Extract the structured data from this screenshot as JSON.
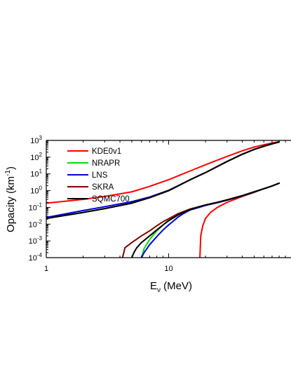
{
  "chart_data": {
    "type": "line",
    "xlabel": "E",
    "xlabel_sub": "ν",
    "xlabel_unit": " (MeV)",
    "ylabel": "Opacity (km",
    "ylabel_sup": "-1",
    "ylabel_close": ")",
    "x_scale": "log",
    "y_scale": "log",
    "xlim": [
      1,
      100
    ],
    "ylim": [
      0.0001,
      1000
    ],
    "grid": false,
    "legend_position": "top-left",
    "x_ticks": [
      {
        "value": 1,
        "label": "1"
      },
      {
        "value": 10,
        "label": "10"
      }
    ],
    "y_ticks": [
      {
        "value": 0.0001,
        "base": "10",
        "exp": "-4"
      },
      {
        "value": 0.001,
        "base": "10",
        "exp": "-3"
      },
      {
        "value": 0.01,
        "base": "10",
        "exp": "-2"
      },
      {
        "value": 0.1,
        "base": "10",
        "exp": "-1"
      },
      {
        "value": 1,
        "base": "10",
        "exp": "0"
      },
      {
        "value": 10,
        "base": "10",
        "exp": "1"
      },
      {
        "value": 100,
        "base": "10",
        "exp": "2"
      },
      {
        "value": 1000,
        "base": "10",
        "exp": "3"
      }
    ],
    "series": [
      {
        "name": "KDE0v1",
        "color": "#ff0000",
        "groups": [
          {
            "x": [
              1,
              2,
              3,
              5,
              7,
              10,
              15,
              20,
              30,
              40,
              50,
              60,
              70,
              80
            ],
            "y": [
              0.18,
              0.3,
              0.45,
              0.85,
              1.8,
              4.5,
              15,
              35,
              110,
              240,
              400,
              550,
              700,
              850
            ]
          },
          {
            "x": [
              18.0,
              18.3,
              19,
              20,
              22,
              25,
              30,
              40,
              50,
              60,
              70,
              80
            ],
            "y": [
              0.0001,
              0.002,
              0.008,
              0.022,
              0.05,
              0.1,
              0.2,
              0.45,
              0.8,
              1.3,
              1.9,
              2.8
            ]
          }
        ]
      },
      {
        "name": "NRAPR",
        "color": "#00e000",
        "groups": [
          {
            "x": [
              1,
              2,
              3,
              5,
              7,
              10,
              15,
              20,
              30,
              40,
              50,
              60,
              70,
              80
            ],
            "y": [
              0.022,
              0.05,
              0.085,
              0.18,
              0.38,
              1.0,
              4.5,
              12,
              55,
              150,
              290,
              450,
              620,
              800
            ]
          },
          {
            "x": [
              6.0,
              6.3,
              7,
              8,
              9,
              10,
              12,
              15,
              20,
              25,
              30,
              40,
              50,
              60,
              70,
              80
            ],
            "y": [
              0.0001,
              0.00035,
              0.0012,
              0.004,
              0.009,
              0.017,
              0.038,
              0.075,
              0.14,
              0.2,
              0.28,
              0.5,
              0.85,
              1.3,
              1.9,
              2.8
            ]
          }
        ]
      },
      {
        "name": "LNS",
        "color": "#0000dd",
        "groups": [
          {
            "x": [
              1,
              2,
              3,
              5,
              7,
              10,
              15,
              20,
              30,
              40,
              50,
              60,
              70,
              80
            ],
            "y": [
              0.025,
              0.065,
              0.11,
              0.22,
              0.42,
              1.05,
              4.5,
              12,
              55,
              150,
              290,
              450,
              620,
              800
            ]
          },
          {
            "x": [
              6.0,
              6.3,
              7,
              8,
              9,
              10,
              11,
              12,
              13,
              15,
              20,
              25,
              30,
              40,
              50,
              60,
              70,
              80
            ],
            "y": [
              0.0001,
              0.0002,
              0.0006,
              0.0018,
              0.0045,
              0.009,
              0.016,
              0.027,
              0.04,
              0.07,
              0.13,
              0.19,
              0.27,
              0.48,
              0.82,
              1.3,
              1.9,
              2.8
            ]
          }
        ]
      },
      {
        "name": "SKRA",
        "color": "#7f0000",
        "groups": [
          {
            "x": [
              1,
              2,
              3,
              5,
              7,
              10,
              15,
              20,
              30,
              40,
              50,
              60,
              70,
              80
            ],
            "y": [
              0.022,
              0.05,
              0.085,
              0.18,
              0.38,
              1.0,
              4.5,
              12,
              55,
              150,
              290,
              450,
              620,
              800
            ]
          },
          {
            "x": [
              4.2,
              4.4,
              4.6,
              5,
              6,
              7,
              8,
              9,
              10,
              12,
              15,
              20,
              25,
              30,
              40,
              50,
              60,
              70,
              80
            ],
            "y": [
              0.0001,
              0.0004,
              0.0005,
              0.0008,
              0.002,
              0.004,
              0.008,
              0.014,
              0.021,
              0.043,
              0.08,
              0.14,
              0.2,
              0.28,
              0.5,
              0.85,
              1.3,
              1.9,
              2.8
            ]
          }
        ]
      },
      {
        "name": "SQMC700",
        "color": "#000000",
        "groups": [
          {
            "x": [
              1,
              2,
              3,
              5,
              7,
              10,
              15,
              20,
              30,
              40,
              50,
              60,
              70,
              80
            ],
            "y": [
              0.022,
              0.05,
              0.085,
              0.18,
              0.38,
              1.0,
              4.5,
              12,
              55,
              150,
              290,
              450,
              620,
              800
            ]
          },
          {
            "x": [
              5.0,
              5.2,
              5.5,
              6,
              7,
              8,
              9,
              10,
              12,
              15,
              20,
              25,
              30,
              40,
              50,
              60,
              70,
              80
            ],
            "y": [
              0.0001,
              0.0002,
              0.0004,
              0.0008,
              0.002,
              0.0045,
              0.009,
              0.016,
              0.036,
              0.075,
              0.14,
              0.2,
              0.28,
              0.5,
              0.85,
              1.3,
              1.9,
              2.8
            ]
          }
        ]
      }
    ]
  }
}
